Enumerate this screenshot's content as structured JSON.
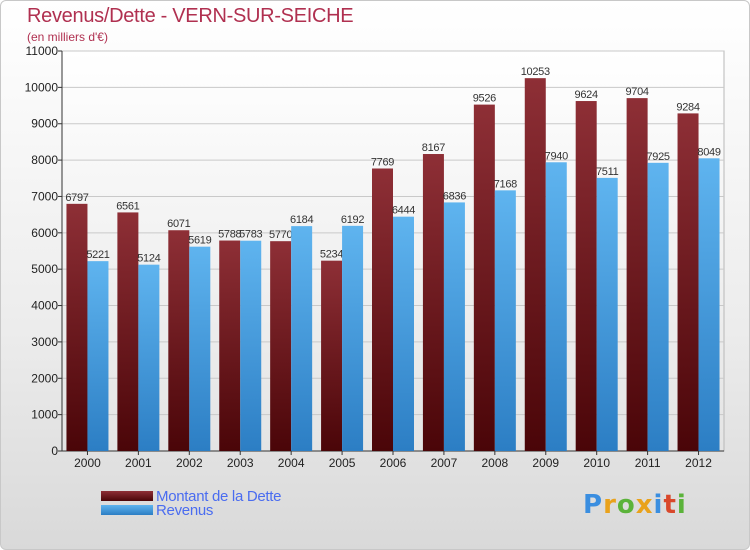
{
  "chart_data": {
    "type": "bar",
    "title": "Revenus/Dette - VERN-SUR-SEICHE",
    "subtitle": "(en milliers d'€)",
    "categories": [
      "2000",
      "2001",
      "2002",
      "2003",
      "2004",
      "2005",
      "2006",
      "2007",
      "2008",
      "2009",
      "2010",
      "2011",
      "2012"
    ],
    "series": [
      {
        "name": "Montant de la Dette",
        "color": "#7a1e24",
        "values": [
          6797,
          6561,
          6071,
          5788,
          5770,
          5234,
          7769,
          8167,
          9526,
          10253,
          9624,
          9704,
          9284
        ]
      },
      {
        "name": "Revenus",
        "color": "#4aa6e8",
        "values": [
          5221,
          5124,
          5619,
          5783,
          6184,
          6192,
          6444,
          6836,
          7168,
          7940,
          7511,
          7925,
          8049
        ]
      }
    ],
    "ylim": [
      0,
      11000
    ],
    "yticks": [
      0,
      1000,
      2000,
      3000,
      4000,
      5000,
      6000,
      7000,
      8000,
      9000,
      10000,
      11000
    ],
    "grid": true,
    "legend_position": "bottom-left",
    "xlabel": "",
    "ylabel": ""
  },
  "brand": {
    "letters": [
      "P",
      "r",
      "o",
      "x",
      "i",
      "t",
      "i"
    ],
    "colors": [
      "#3a8ee0",
      "#e9a21c",
      "#5bb33a",
      "#e9a21c",
      "#3a8ee0",
      "#d9482b",
      "#5bb33a"
    ]
  }
}
